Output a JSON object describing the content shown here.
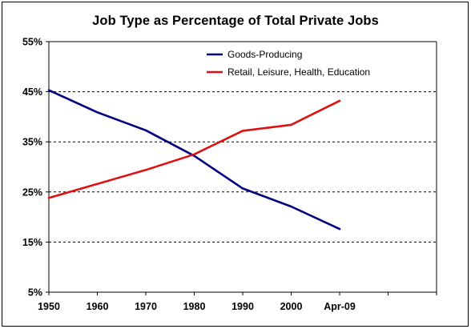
{
  "chart_data": {
    "type": "line",
    "title": "Job Type as Percentage of Total Private Jobs",
    "xlabel": "",
    "ylabel": "",
    "categories": [
      "1950",
      "1960",
      "1970",
      "1980",
      "1990",
      "2000",
      "Apr-09"
    ],
    "y_ticks": [
      "5%",
      "15%",
      "25%",
      "35%",
      "45%",
      "55%"
    ],
    "ylim": [
      5,
      55
    ],
    "grid": "dashed horizontal at 15%, 25%, 35%, 45%",
    "legend_position": "top-right",
    "series": [
      {
        "name": "Goods-Producing",
        "color": "#00007f",
        "values": [
          45.3,
          40.9,
          37.3,
          32.2,
          25.7,
          22.1,
          17.6
        ]
      },
      {
        "name": "Retail, Leisure, Health, Education",
        "color": "#dd1111",
        "values": [
          23.8,
          26.6,
          29.4,
          32.5,
          37.2,
          38.4,
          43.2
        ]
      }
    ]
  }
}
